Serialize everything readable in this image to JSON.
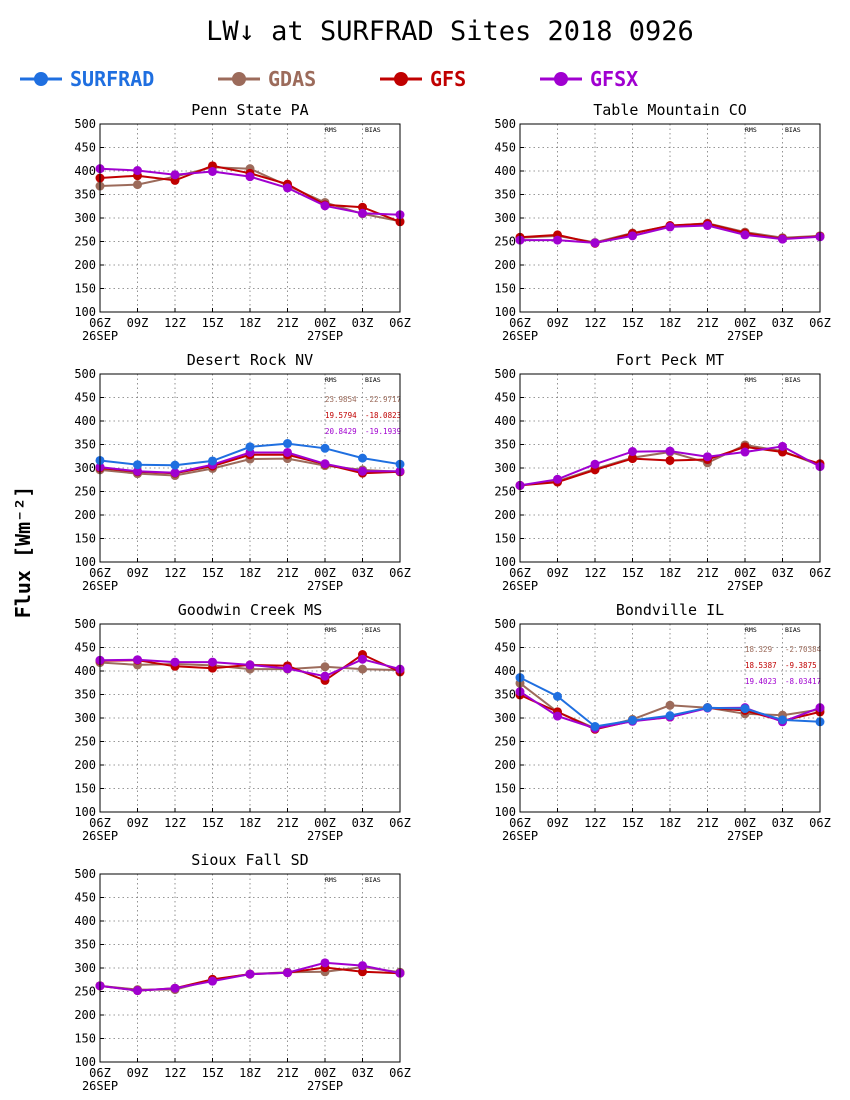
{
  "title": "LW↓ at SURFRAD Sites   2018 0926",
  "ylabel": "Flux [Wm⁻²]",
  "colors": {
    "SURFRAD": "#1f6fe0",
    "GDAS": "#9c6b5b",
    "GFS": "#c00000",
    "GFSX": "#a000d0"
  },
  "legend": [
    {
      "name": "SURFRAD",
      "color": "#1f6fe0"
    },
    {
      "name": "GDAS",
      "color": "#9c6b5b"
    },
    {
      "name": "GFS",
      "color": "#c00000"
    },
    {
      "name": "GFSX",
      "color": "#a000d0"
    }
  ],
  "stats_header": {
    "rms": "RMS",
    "bias": "BIAS"
  },
  "chart_data": [
    {
      "type": "line",
      "title": "Penn State PA",
      "categories": [
        "06Z",
        "09Z",
        "12Z",
        "15Z",
        "18Z",
        "21Z",
        "00Z",
        "03Z",
        "06Z"
      ],
      "date_labels": [
        {
          "at": 0,
          "text": "26SEP"
        },
        {
          "at": 6,
          "text": "27SEP"
        }
      ],
      "ylim": [
        100,
        500
      ],
      "yticks": [
        100,
        150,
        200,
        250,
        300,
        350,
        400,
        450,
        500
      ],
      "grid": true,
      "series": [
        {
          "name": "SURFRAD",
          "values": [
            null,
            null,
            null,
            null,
            null,
            null,
            null,
            null,
            null
          ]
        },
        {
          "name": "GDAS",
          "values": [
            368,
            371,
            388,
            408,
            405,
            369,
            333,
            309,
            293
          ]
        },
        {
          "name": "GFS",
          "values": [
            385,
            390,
            380,
            411,
            395,
            372,
            328,
            323,
            292
          ]
        },
        {
          "name": "GFSX",
          "values": [
            405,
            401,
            392,
            399,
            388,
            364,
            326,
            310,
            307
          ]
        }
      ],
      "stats": []
    },
    {
      "type": "line",
      "title": "Table Mountain CO",
      "categories": [
        "06Z",
        "09Z",
        "12Z",
        "15Z",
        "18Z",
        "21Z",
        "00Z",
        "03Z",
        "06Z"
      ],
      "date_labels": [
        {
          "at": 0,
          "text": "26SEP"
        },
        {
          "at": 6,
          "text": "27SEP"
        }
      ],
      "ylim": [
        100,
        500
      ],
      "yticks": [
        100,
        150,
        200,
        250,
        300,
        350,
        400,
        450,
        500
      ],
      "grid": true,
      "series": [
        {
          "name": "SURFRAD",
          "values": [
            null,
            null,
            null,
            null,
            null,
            null,
            null,
            null,
            null
          ]
        },
        {
          "name": "GDAS",
          "values": [
            258,
            262,
            248,
            268,
            283,
            289,
            270,
            258,
            262
          ]
        },
        {
          "name": "GFS",
          "values": [
            259,
            264,
            246,
            267,
            284,
            288,
            268,
            256,
            261
          ]
        },
        {
          "name": "GFSX",
          "values": [
            253,
            253,
            247,
            262,
            281,
            284,
            264,
            255,
            260
          ]
        }
      ],
      "stats": []
    },
    {
      "type": "line",
      "title": "Desert Rock NV",
      "categories": [
        "06Z",
        "09Z",
        "12Z",
        "15Z",
        "18Z",
        "21Z",
        "00Z",
        "03Z",
        "06Z"
      ],
      "date_labels": [
        {
          "at": 0,
          "text": "26SEP"
        },
        {
          "at": 6,
          "text": "27SEP"
        }
      ],
      "ylim": [
        100,
        500
      ],
      "yticks": [
        100,
        150,
        200,
        250,
        300,
        350,
        400,
        450,
        500
      ],
      "grid": true,
      "series": [
        {
          "name": "SURFRAD",
          "values": [
            316,
            307,
            306,
            315,
            345,
            352,
            342,
            321,
            308
          ]
        },
        {
          "name": "GDAS",
          "values": [
            296,
            288,
            284,
            299,
            319,
            320,
            305,
            296,
            292
          ]
        },
        {
          "name": "GFS",
          "values": [
            300,
            292,
            289,
            304,
            328,
            328,
            308,
            289,
            292
          ]
        },
        {
          "name": "GFSX",
          "values": [
            302,
            293,
            290,
            307,
            333,
            333,
            309,
            293,
            293
          ]
        }
      ],
      "stats": [
        {
          "series": "GDAS",
          "rms": "23.9854",
          "bias": "-22.9717"
        },
        {
          "series": "GFS",
          "rms": "19.5794",
          "bias": "-18.0823"
        },
        {
          "series": "GFSX",
          "rms": "20.8429",
          "bias": "-19.1939"
        }
      ]
    },
    {
      "type": "line",
      "title": "Fort Peck MT",
      "categories": [
        "06Z",
        "09Z",
        "12Z",
        "15Z",
        "18Z",
        "21Z",
        "00Z",
        "03Z",
        "06Z"
      ],
      "date_labels": [
        {
          "at": 0,
          "text": "26SEP"
        },
        {
          "at": 6,
          "text": "27SEP"
        }
      ],
      "ylim": [
        100,
        500
      ],
      "yticks": [
        100,
        150,
        200,
        250,
        300,
        350,
        400,
        450,
        500
      ],
      "grid": true,
      "series": [
        {
          "name": "SURFRAD",
          "values": [
            null,
            null,
            null,
            null,
            null,
            null,
            null,
            null,
            null
          ]
        },
        {
          "name": "GDAS",
          "values": [
            263,
            272,
            298,
            322,
            334,
            311,
            349,
            336,
            305
          ]
        },
        {
          "name": "GFS",
          "values": [
            263,
            270,
            296,
            320,
            316,
            318,
            345,
            334,
            309
          ]
        },
        {
          "name": "GFSX",
          "values": [
            263,
            276,
            308,
            335,
            336,
            324,
            334,
            346,
            303
          ]
        }
      ],
      "stats": []
    },
    {
      "type": "line",
      "title": "Goodwin Creek MS",
      "categories": [
        "06Z",
        "09Z",
        "12Z",
        "15Z",
        "18Z",
        "21Z",
        "00Z",
        "03Z",
        "06Z"
      ],
      "date_labels": [
        {
          "at": 0,
          "text": "26SEP"
        },
        {
          "at": 6,
          "text": "27SEP"
        }
      ],
      "ylim": [
        100,
        500
      ],
      "yticks": [
        100,
        150,
        200,
        250,
        300,
        350,
        400,
        450,
        500
      ],
      "grid": true,
      "series": [
        {
          "name": "SURFRAD",
          "values": [
            null,
            null,
            null,
            null,
            null,
            null,
            null,
            null,
            null
          ]
        },
        {
          "name": "GDAS",
          "values": [
            418,
            413,
            415,
            412,
            404,
            404,
            409,
            404,
            402
          ]
        },
        {
          "name": "GFS",
          "values": [
            422,
            423,
            410,
            406,
            413,
            411,
            380,
            435,
            398
          ]
        },
        {
          "name": "GFSX",
          "values": [
            423,
            424,
            419,
            419,
            413,
            405,
            389,
            425,
            404
          ]
        }
      ],
      "stats": []
    },
    {
      "type": "line",
      "title": "Bondville IL",
      "categories": [
        "06Z",
        "09Z",
        "12Z",
        "15Z",
        "18Z",
        "21Z",
        "00Z",
        "03Z",
        "06Z"
      ],
      "date_labels": [
        {
          "at": 0,
          "text": "26SEP"
        },
        {
          "at": 6,
          "text": "27SEP"
        }
      ],
      "ylim": [
        100,
        500
      ],
      "yticks": [
        100,
        150,
        200,
        250,
        300,
        350,
        400,
        450,
        500
      ],
      "grid": true,
      "series": [
        {
          "name": "SURFRAD",
          "values": [
            386,
            346,
            282,
            295,
            305,
            322,
            320,
            296,
            292
          ]
        },
        {
          "name": "GDAS",
          "values": [
            374,
            313,
            278,
            297,
            327,
            322,
            309,
            306,
            318
          ]
        },
        {
          "name": "GFS",
          "values": [
            349,
            313,
            276,
            294,
            302,
            322,
            316,
            294,
            313
          ]
        },
        {
          "name": "GFSX",
          "values": [
            356,
            304,
            278,
            293,
            302,
            321,
            322,
            292,
            322
          ]
        }
      ],
      "stats": [
        {
          "series": "GDAS",
          "rms": "18.329",
          "bias": "-2.70384"
        },
        {
          "series": "GFS",
          "rms": "18.5387",
          "bias": "-9.3875"
        },
        {
          "series": "GFSX",
          "rms": "19.4023",
          "bias": "-8.03417"
        }
      ]
    },
    {
      "type": "line",
      "title": "Sioux Fall SD",
      "categories": [
        "06Z",
        "09Z",
        "12Z",
        "15Z",
        "18Z",
        "21Z",
        "00Z",
        "03Z",
        "06Z"
      ],
      "date_labels": [
        {
          "at": 0,
          "text": "26SEP"
        },
        {
          "at": 6,
          "text": "27SEP"
        }
      ],
      "ylim": [
        100,
        500
      ],
      "yticks": [
        100,
        150,
        200,
        250,
        300,
        350,
        400,
        450,
        500
      ],
      "grid": true,
      "series": [
        {
          "name": "SURFRAD",
          "values": [
            null,
            null,
            null,
            null,
            null,
            null,
            null,
            null,
            null
          ]
        },
        {
          "name": "GDAS",
          "values": [
            262,
            254,
            254,
            275,
            287,
            291,
            292,
            302,
            291
          ]
        },
        {
          "name": "GFS",
          "values": [
            262,
            252,
            257,
            276,
            287,
            290,
            301,
            292,
            289
          ]
        },
        {
          "name": "GFSX",
          "values": [
            262,
            252,
            257,
            272,
            287,
            290,
            311,
            305,
            289
          ]
        }
      ],
      "stats": []
    }
  ]
}
